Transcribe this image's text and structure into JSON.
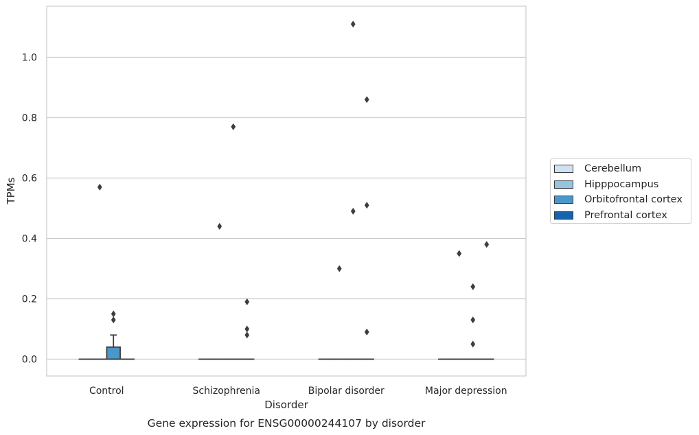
{
  "chart_data": {
    "type": "box",
    "title": "",
    "caption": "Gene expression for ENSG00000244107 by disorder",
    "xlabel": "Disorder",
    "ylabel": "TPMs",
    "ylim": [
      -0.055,
      1.17
    ],
    "yticks": [
      0.0,
      0.2,
      0.4,
      0.6,
      0.8,
      1.0
    ],
    "ytick_labels": [
      "0.0",
      "0.2",
      "0.4",
      "0.6",
      "0.8",
      "1.0"
    ],
    "grid": "horizontal",
    "legend_position": "right",
    "categories": [
      "Control",
      "Schizophrenia",
      "Bipolar disorder",
      "Major depression"
    ],
    "series": [
      {
        "name": "Cerebellum",
        "color": "#d0e1f2",
        "boxes": [
          {
            "q1": 0,
            "median": 0,
            "q3": 0,
            "whisker_low": 0,
            "whisker_high": 0,
            "outliers": []
          },
          {
            "q1": 0,
            "median": 0,
            "q3": 0,
            "whisker_low": 0,
            "whisker_high": 0,
            "outliers": []
          },
          {
            "q1": 0,
            "median": 0,
            "q3": 0,
            "whisker_low": 0,
            "whisker_high": 0,
            "outliers": []
          },
          {
            "q1": 0,
            "median": 0,
            "q3": 0,
            "whisker_low": 0,
            "whisker_high": 0,
            "outliers": []
          }
        ]
      },
      {
        "name": "Hipppocampus",
        "color": "#94c4df",
        "boxes": [
          {
            "q1": 0,
            "median": 0,
            "q3": 0,
            "whisker_low": 0,
            "whisker_high": 0,
            "outliers": [
              0.57
            ]
          },
          {
            "q1": 0,
            "median": 0,
            "q3": 0,
            "whisker_low": 0,
            "whisker_high": 0,
            "outliers": [
              0.44
            ]
          },
          {
            "q1": 0,
            "median": 0,
            "q3": 0,
            "whisker_low": 0,
            "whisker_high": 0,
            "outliers": [
              0.3
            ]
          },
          {
            "q1": 0,
            "median": 0,
            "q3": 0,
            "whisker_low": 0,
            "whisker_high": 0,
            "outliers": [
              0.35
            ]
          }
        ]
      },
      {
        "name": "Orbitofrontal cortex",
        "color": "#4a98c9",
        "boxes": [
          {
            "q1": 0,
            "median": 0,
            "q3": 0.04,
            "whisker_low": 0,
            "whisker_high": 0.08,
            "outliers": [
              0.15,
              0.13
            ]
          },
          {
            "q1": 0,
            "median": 0,
            "q3": 0,
            "whisker_low": 0,
            "whisker_high": 0,
            "outliers": [
              0.77
            ]
          },
          {
            "q1": 0,
            "median": 0,
            "q3": 0,
            "whisker_low": 0,
            "whisker_high": 0,
            "outliers": [
              1.11,
              0.49
            ]
          },
          {
            "q1": 0,
            "median": 0,
            "q3": 0,
            "whisker_low": 0,
            "whisker_high": 0,
            "outliers": [
              0.24,
              0.13,
              0.05
            ]
          }
        ]
      },
      {
        "name": "Prefrontal cortex",
        "color": "#1764ab",
        "boxes": [
          {
            "q1": 0,
            "median": 0,
            "q3": 0,
            "whisker_low": 0,
            "whisker_high": 0,
            "outliers": []
          },
          {
            "q1": 0,
            "median": 0,
            "q3": 0,
            "whisker_low": 0,
            "whisker_high": 0,
            "outliers": [
              0.19,
              0.1,
              0.08
            ]
          },
          {
            "q1": 0,
            "median": 0,
            "q3": 0,
            "whisker_low": 0,
            "whisker_high": 0,
            "outliers": [
              0.86,
              0.51,
              0.09
            ]
          },
          {
            "q1": 0,
            "median": 0,
            "q3": 0,
            "whisker_low": 0,
            "whisker_high": 0,
            "outliers": [
              0.38
            ]
          }
        ]
      }
    ]
  }
}
